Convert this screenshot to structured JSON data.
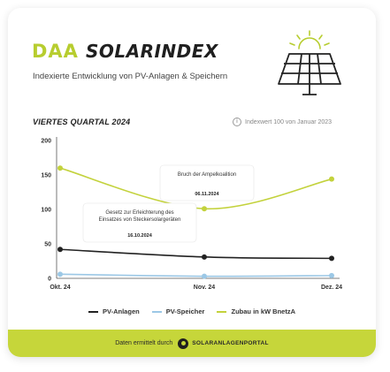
{
  "brand": {
    "mark": "DAA",
    "name": "SOLARINDEX",
    "subtitle": "Indexierte Entwicklung von PV-Anlagen & Speichern"
  },
  "period": "VIERTES QUARTAL 2024",
  "index_note": "Indexwert 100 von Januar 2023",
  "colors": {
    "accent": "#c6d63a",
    "pv_anlagen": "#222222",
    "pv_speicher": "#9cc8e6",
    "zubau": "#c3d23c"
  },
  "chart_data": {
    "type": "line",
    "categories": [
      "Okt. 24",
      "Nov. 24",
      "Dez. 24"
    ],
    "y_ticks": [
      0,
      50,
      100,
      150,
      200
    ],
    "ylim": [
      0,
      200
    ],
    "grid": false,
    "legend_position": "bottom",
    "series": [
      {
        "name": "PV-Anlagen",
        "values": [
          42,
          31,
          29
        ],
        "color": "#222222"
      },
      {
        "name": "PV-Speicher",
        "values": [
          6,
          3,
          4
        ],
        "color": "#9cc8e6"
      },
      {
        "name": "Zubau in kW BnetzA",
        "values": [
          160,
          101,
          144
        ],
        "color": "#c3d23c"
      }
    ],
    "annotations": [
      {
        "title": "Bruch der Ampelkoalition",
        "date": "06.11.2024"
      },
      {
        "title": "Gesetz zur Erleichterung des Einsatzes von Steckersolargeräten",
        "title_lines": [
          "Gesetz zur Erleichterung des",
          "Einsatzes von Steckersolargeräten"
        ],
        "date": "16.10.2024"
      }
    ]
  },
  "footer": {
    "text": "Daten ermittelt durch",
    "source_logo": "SOLARANLAGENPORTAL"
  }
}
